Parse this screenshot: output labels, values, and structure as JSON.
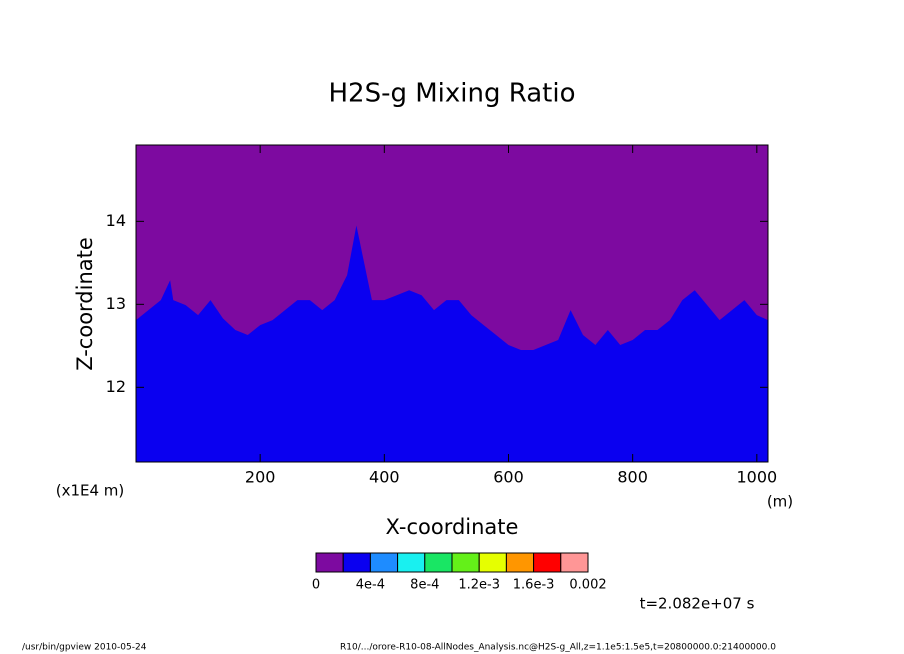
{
  "chart_data": {
    "type": "area",
    "title": "H2S-g Mixing Ratio",
    "x_label": "X-coordinate",
    "y_label": "Z-coordinate",
    "x_unit": "(m)",
    "y_unit": "(x1E4 m)",
    "x": [
      0,
      20,
      40,
      55,
      60,
      80,
      100,
      120,
      140,
      160,
      180,
      200,
      220,
      240,
      260,
      280,
      300,
      320,
      340,
      355,
      360,
      380,
      400,
      420,
      440,
      460,
      480,
      500,
      520,
      540,
      560,
      580,
      600,
      620,
      640,
      660,
      680,
      700,
      720,
      740,
      760,
      780,
      800,
      820,
      840,
      860,
      880,
      900,
      920,
      940,
      960,
      980,
      1000,
      1018
    ],
    "values": [
      12.81,
      12.93,
      13.05,
      13.29,
      13.05,
      12.99,
      12.87,
      13.05,
      12.83,
      12.69,
      12.63,
      12.75,
      12.81,
      12.93,
      13.05,
      13.05,
      12.93,
      13.05,
      13.35,
      13.95,
      13.77,
      13.05,
      13.05,
      13.11,
      13.17,
      13.11,
      12.93,
      13.05,
      13.05,
      12.87,
      12.75,
      12.63,
      12.51,
      12.45,
      12.45,
      12.51,
      12.57,
      12.93,
      12.63,
      12.51,
      12.69,
      12.51,
      12.57,
      12.69,
      12.69,
      12.81,
      13.05,
      13.17,
      12.99,
      12.81,
      12.93,
      13.05,
      12.87,
      12.81
    ],
    "below_color": "#0a00f0",
    "above_color": "#7d0aa0",
    "xlim": [
      0,
      1018
    ],
    "ylim": [
      11.1,
      14.92
    ],
    "xticks": [
      200,
      400,
      600,
      800,
      1000
    ],
    "yticks": [
      12,
      13,
      14
    ],
    "colorbar": {
      "colors": [
        "#7d0aa0",
        "#0a00f0",
        "#1e8cff",
        "#19f0f0",
        "#19e664",
        "#64f019",
        "#e6ff00",
        "#ff9600",
        "#ff0000",
        "#ff9696"
      ],
      "lim": [
        0,
        0.002
      ],
      "ticks": [
        0,
        {
          "value": 0.0004,
          "label": "4e-4"
        },
        {
          "value": 0.0008,
          "label": "8e-4"
        },
        {
          "value": 0.0012,
          "label": "1.2e-3"
        },
        {
          "value": 0.0016,
          "label": "1.6e-3"
        },
        0.002
      ]
    },
    "time_label": "t=2.082e+07 s",
    "footer_left": "/usr/bin/gpview  2010-05-24",
    "footer_right": "R10/.../orore-R10-08-AllNodes_Analysis.nc@H2S-g_All,z=1.1e5:1.5e5,t=20800000.0:21400000.0"
  }
}
